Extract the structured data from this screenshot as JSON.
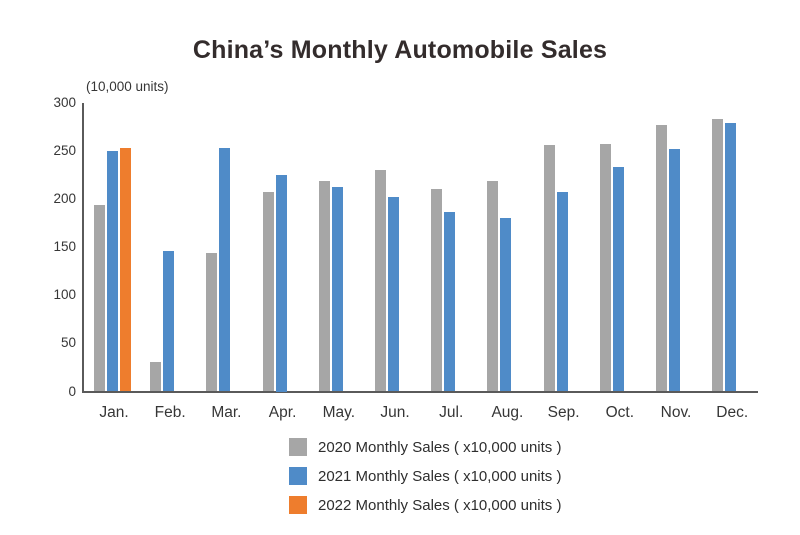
{
  "chart": {
    "title": "China’s Monthly Automobile Sales",
    "unit_label": "(10,000 units)"
  },
  "chart_data": {
    "type": "bar",
    "title": "China’s Monthly Automobile Sales",
    "ylabel": "(10,000 units)",
    "xlabel": "",
    "categories": [
      "Jan.",
      "Feb.",
      "Mar.",
      "Apr.",
      "May.",
      "Jun.",
      "Jul.",
      "Aug.",
      "Sep.",
      "Oct.",
      "Nov.",
      "Dec."
    ],
    "series": [
      {
        "name": "2020 Monthly Sales ( x10,000 units )",
        "color": "#a6a6a6",
        "values": [
          194,
          31,
          144,
          207,
          219,
          230,
          211,
          219,
          256,
          257,
          277,
          283
        ]
      },
      {
        "name": "2021 Monthly Sales ( x10,000 units )",
        "color": "#4f8bc8",
        "values": [
          250,
          146,
          253,
          225,
          213,
          202,
          187,
          180,
          207,
          233,
          252,
          279
        ]
      },
      {
        "name": "2022 Monthly Sales ( x10,000 units )",
        "color": "#ee7d2d",
        "values": [
          253,
          null,
          null,
          null,
          null,
          null,
          null,
          null,
          null,
          null,
          null,
          null
        ]
      }
    ],
    "ylim": [
      0,
      300
    ],
    "yticks": [
      0,
      50,
      100,
      150,
      200,
      250,
      300
    ],
    "grid": false,
    "legend_position": "bottom"
  },
  "colors": {
    "axis": "#5a5a5a",
    "tick_text": "#363636",
    "title_text": "#332c2c",
    "background": "#ffffff"
  }
}
